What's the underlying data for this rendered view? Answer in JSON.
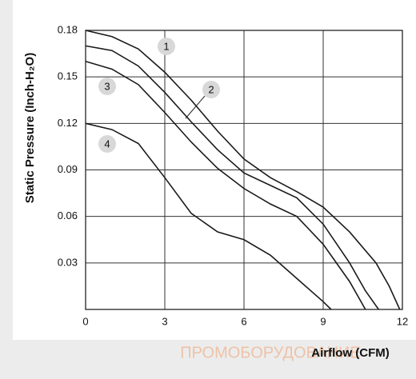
{
  "chart_data": {
    "type": "line",
    "y_label": "Static Pressure (Inch-H₂O)",
    "x_label": "Airflow (CFM)",
    "watermark": "ПРОМОБОРУДОВАНИЕ",
    "xlim": [
      0,
      12
    ],
    "xticks": [
      0,
      3,
      6,
      9,
      12
    ],
    "ylim": [
      0,
      0.18
    ],
    "yticks": [
      0.03,
      0.06,
      0.09,
      0.12,
      0.15,
      0.18
    ],
    "grid": true,
    "series": [
      {
        "name": "1",
        "color": "#1a1a1a",
        "x": [
          0,
          1,
          2,
          3,
          4,
          5,
          6,
          7,
          8,
          9,
          10,
          11,
          11.5,
          11.9
        ],
        "values": [
          0.18,
          0.176,
          0.168,
          0.153,
          0.135,
          0.115,
          0.097,
          0.085,
          0.076,
          0.066,
          0.05,
          0.03,
          0.015,
          0
        ]
      },
      {
        "name": "2",
        "color": "#1a1a1a",
        "x": [
          0,
          1,
          2,
          3,
          4,
          5,
          6,
          7,
          8,
          9,
          10,
          10.6,
          11.1
        ],
        "values": [
          0.17,
          0.167,
          0.157,
          0.14,
          0.121,
          0.103,
          0.088,
          0.08,
          0.072,
          0.055,
          0.03,
          0.012,
          0
        ]
      },
      {
        "name": "3",
        "color": "#1a1a1a",
        "x": [
          0,
          1,
          2,
          3,
          4,
          5,
          6,
          7,
          8,
          9,
          10,
          10.6
        ],
        "values": [
          0.16,
          0.155,
          0.145,
          0.127,
          0.108,
          0.091,
          0.078,
          0.068,
          0.06,
          0.042,
          0.018,
          0
        ]
      },
      {
        "name": "4",
        "color": "#1a1a1a",
        "x": [
          0,
          1,
          2,
          3,
          4,
          5,
          6,
          7,
          8,
          9,
          9.3
        ],
        "values": [
          0.12,
          0.116,
          0.107,
          0.085,
          0.062,
          0.05,
          0.045,
          0.035,
          0.02,
          0.005,
          0
        ]
      }
    ]
  }
}
